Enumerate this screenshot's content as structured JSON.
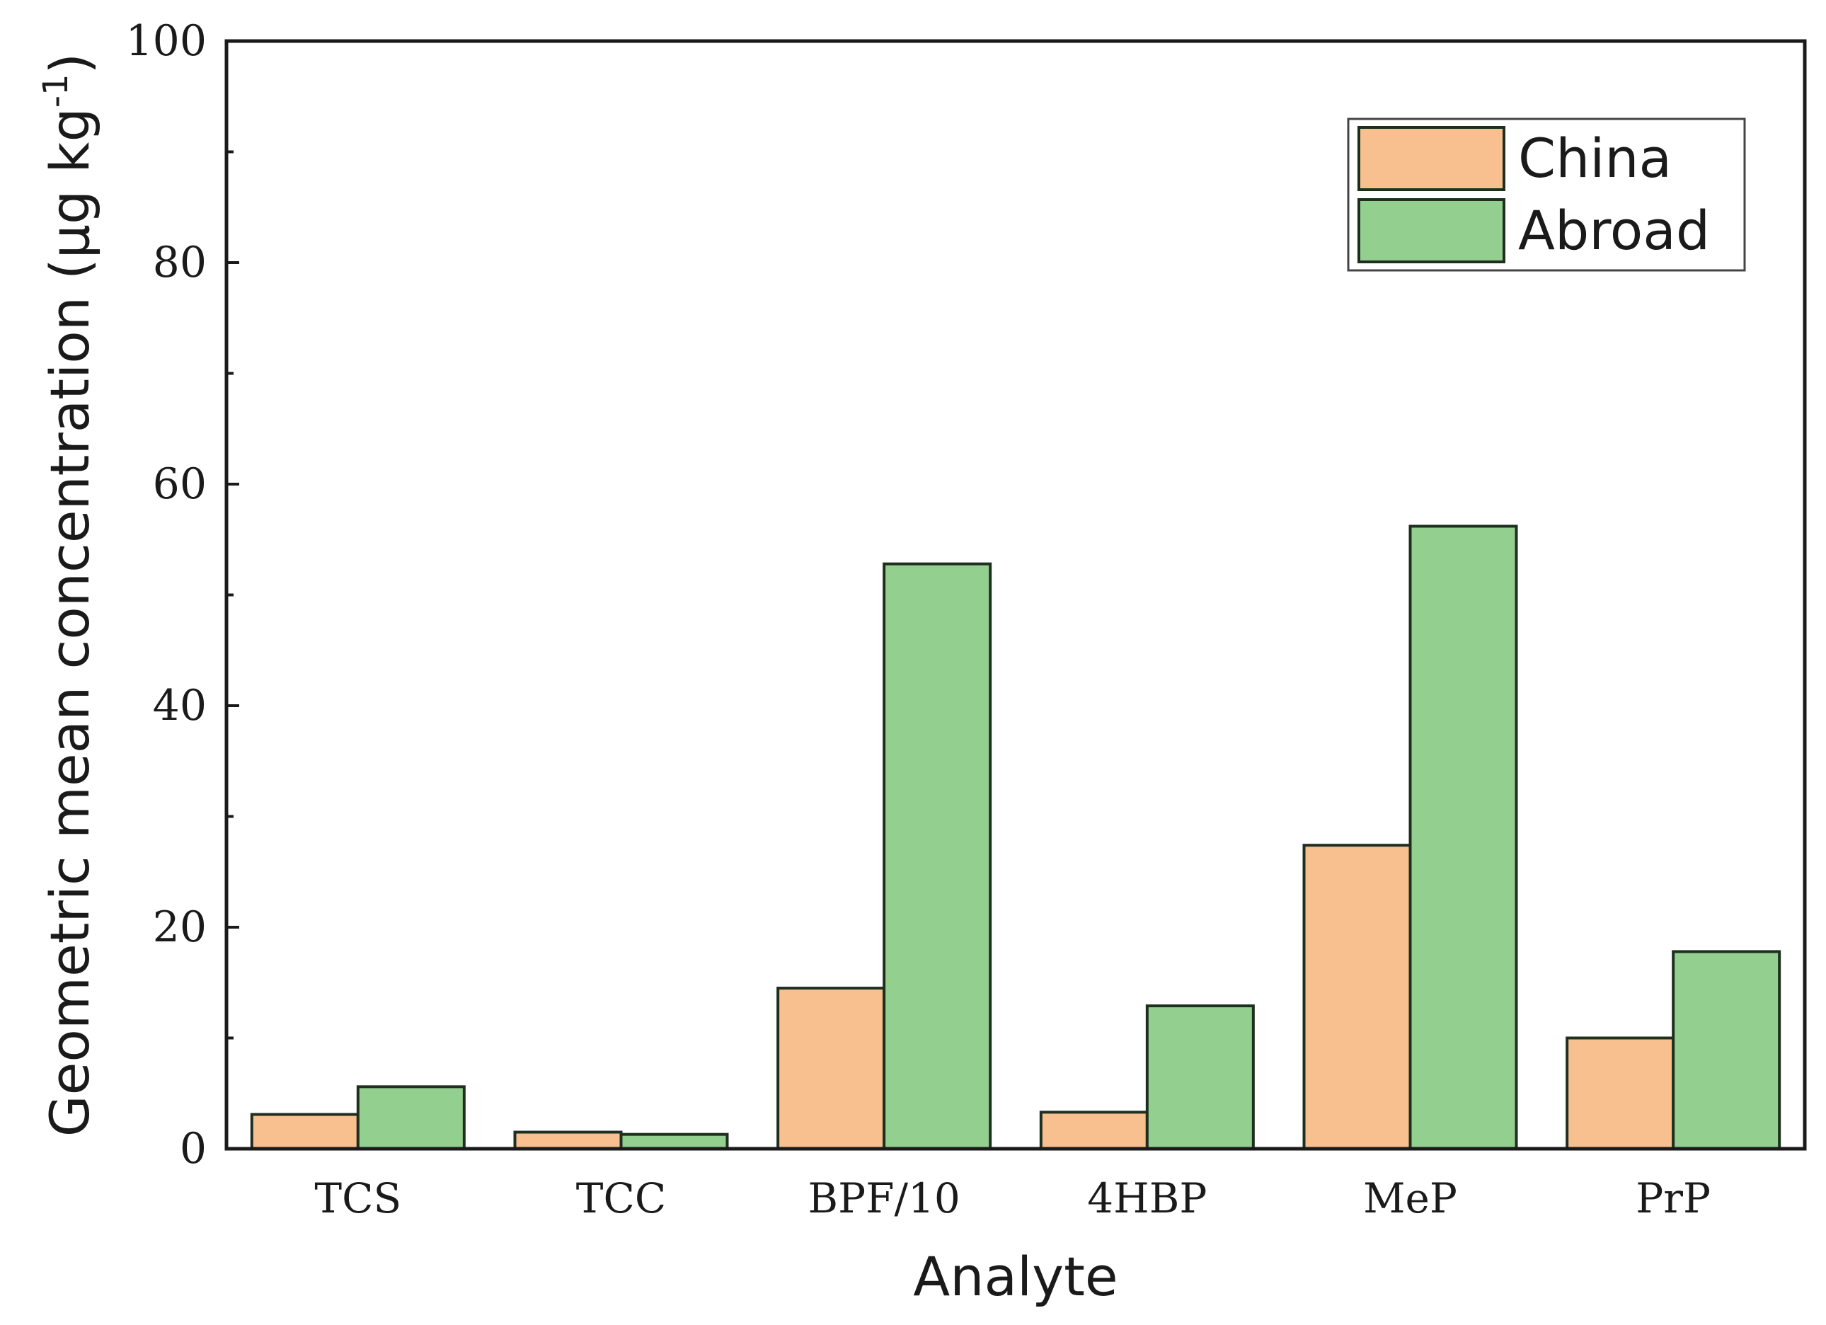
{
  "chart_data": {
    "type": "bar",
    "title": "",
    "xlabel": "Analyte",
    "ylabel": "Geometric mean concentration (µg kg",
    "ylabel_superscript": "-1",
    "ylabel_close": ")",
    "categories": [
      "TCS",
      "TCC",
      "BPF/10",
      "4HBP",
      "MeP",
      "PrP"
    ],
    "series": [
      {
        "name": "China",
        "color": "#f9c08f",
        "values": [
          3.1,
          1.5,
          14.5,
          3.3,
          27.4,
          10.0
        ]
      },
      {
        "name": "Abroad",
        "color": "#93d08f",
        "values": [
          5.6,
          1.3,
          52.8,
          12.9,
          56.2,
          17.8
        ]
      }
    ],
    "ylim": [
      0,
      100
    ],
    "yticks": [
      0,
      20,
      40,
      60,
      80,
      100
    ],
    "yminor_step": 10,
    "grid": false,
    "legend_position": "top-right",
    "bar_edge_color": "#1f2f1f"
  }
}
